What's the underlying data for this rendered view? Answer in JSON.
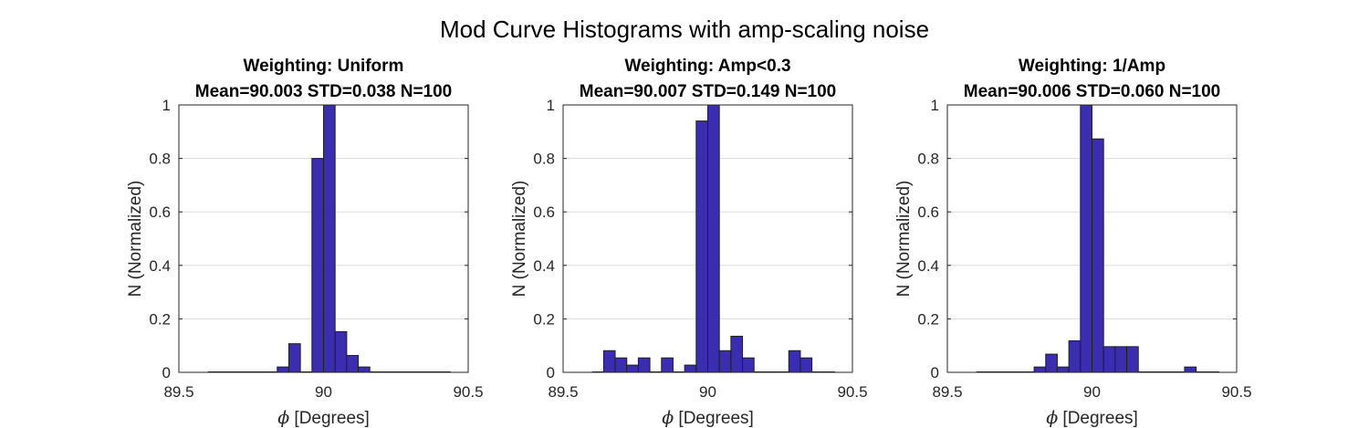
{
  "figure_title": "Mod Curve Histograms with amp-scaling noise",
  "colors": {
    "bar_fill": "#3b2db0",
    "bar_edge": "#1f1f1f"
  },
  "chart_data": [
    {
      "type": "bar",
      "title_line1": "Weighting: Uniform",
      "title_line2": "Mean=90.003 STD=0.038 N=100",
      "xlabel_symbol": "ϕ",
      "xlabel_text": " [Degrees]",
      "ylabel": "N (Normalized)",
      "xlim": [
        89.5,
        90.5
      ],
      "ylim": [
        0,
        1
      ],
      "x_ticks": [
        "89.5",
        "90",
        "90.5"
      ],
      "y_ticks": [
        "0",
        "0.2",
        "0.4",
        "0.6",
        "0.8",
        "1"
      ],
      "grid": "horizontal",
      "bin_range": [
        89.6,
        90.44
      ],
      "bin_width": 0.04,
      "bins": [
        {
          "x0": 89.84,
          "value": 0.02
        },
        {
          "x0": 89.88,
          "value": 0.107
        },
        {
          "x0": 89.92,
          "value": 0.0
        },
        {
          "x0": 89.96,
          "value": 0.8
        },
        {
          "x0": 90.0,
          "value": 1.0
        },
        {
          "x0": 90.04,
          "value": 0.152
        },
        {
          "x0": 90.08,
          "value": 0.063
        },
        {
          "x0": 90.12,
          "value": 0.02
        }
      ]
    },
    {
      "type": "bar",
      "title_line1": "Weighting: Amp<0.3",
      "title_line2": "Mean=90.007 STD=0.149 N=100",
      "xlabel_symbol": "ϕ",
      "xlabel_text": " [Degrees]",
      "ylabel": "N (Normalized)",
      "xlim": [
        89.5,
        90.5
      ],
      "ylim": [
        0,
        1
      ],
      "x_ticks": [
        "89.5",
        "90",
        "90.5"
      ],
      "y_ticks": [
        "0",
        "0.2",
        "0.4",
        "0.6",
        "0.8",
        "1"
      ],
      "grid": "horizontal",
      "bin_range": [
        89.6,
        90.44
      ],
      "bin_width": 0.04,
      "bins": [
        {
          "x0": 89.64,
          "value": 0.081
        },
        {
          "x0": 89.68,
          "value": 0.054
        },
        {
          "x0": 89.72,
          "value": 0.027
        },
        {
          "x0": 89.76,
          "value": 0.054
        },
        {
          "x0": 89.84,
          "value": 0.054
        },
        {
          "x0": 89.92,
          "value": 0.027
        },
        {
          "x0": 89.96,
          "value": 0.94
        },
        {
          "x0": 90.0,
          "value": 1.0
        },
        {
          "x0": 90.04,
          "value": 0.081
        },
        {
          "x0": 90.08,
          "value": 0.135
        },
        {
          "x0": 90.12,
          "value": 0.054
        },
        {
          "x0": 90.28,
          "value": 0.081
        },
        {
          "x0": 90.32,
          "value": 0.054
        }
      ]
    },
    {
      "type": "bar",
      "title_line1": "Weighting: 1/Amp",
      "title_line2": "Mean=90.006 STD=0.060 N=100",
      "xlabel_symbol": "ϕ",
      "xlabel_text": " [Degrees]",
      "ylabel": "N (Normalized)",
      "xlim": [
        89.5,
        90.5
      ],
      "ylim": [
        0,
        1
      ],
      "x_ticks": [
        "89.5",
        "90",
        "90.5"
      ],
      "y_ticks": [
        "0",
        "0.2",
        "0.4",
        "0.6",
        "0.8",
        "1"
      ],
      "grid": "horizontal",
      "bin_range": [
        89.6,
        90.44
      ],
      "bin_width": 0.04,
      "bins": [
        {
          "x0": 89.8,
          "value": 0.02
        },
        {
          "x0": 89.84,
          "value": 0.068
        },
        {
          "x0": 89.88,
          "value": 0.02
        },
        {
          "x0": 89.92,
          "value": 0.118
        },
        {
          "x0": 89.96,
          "value": 1.0
        },
        {
          "x0": 90.0,
          "value": 0.873
        },
        {
          "x0": 90.04,
          "value": 0.096
        },
        {
          "x0": 90.08,
          "value": 0.096
        },
        {
          "x0": 90.12,
          "value": 0.096
        },
        {
          "x0": 90.32,
          "value": 0.02
        }
      ]
    }
  ]
}
